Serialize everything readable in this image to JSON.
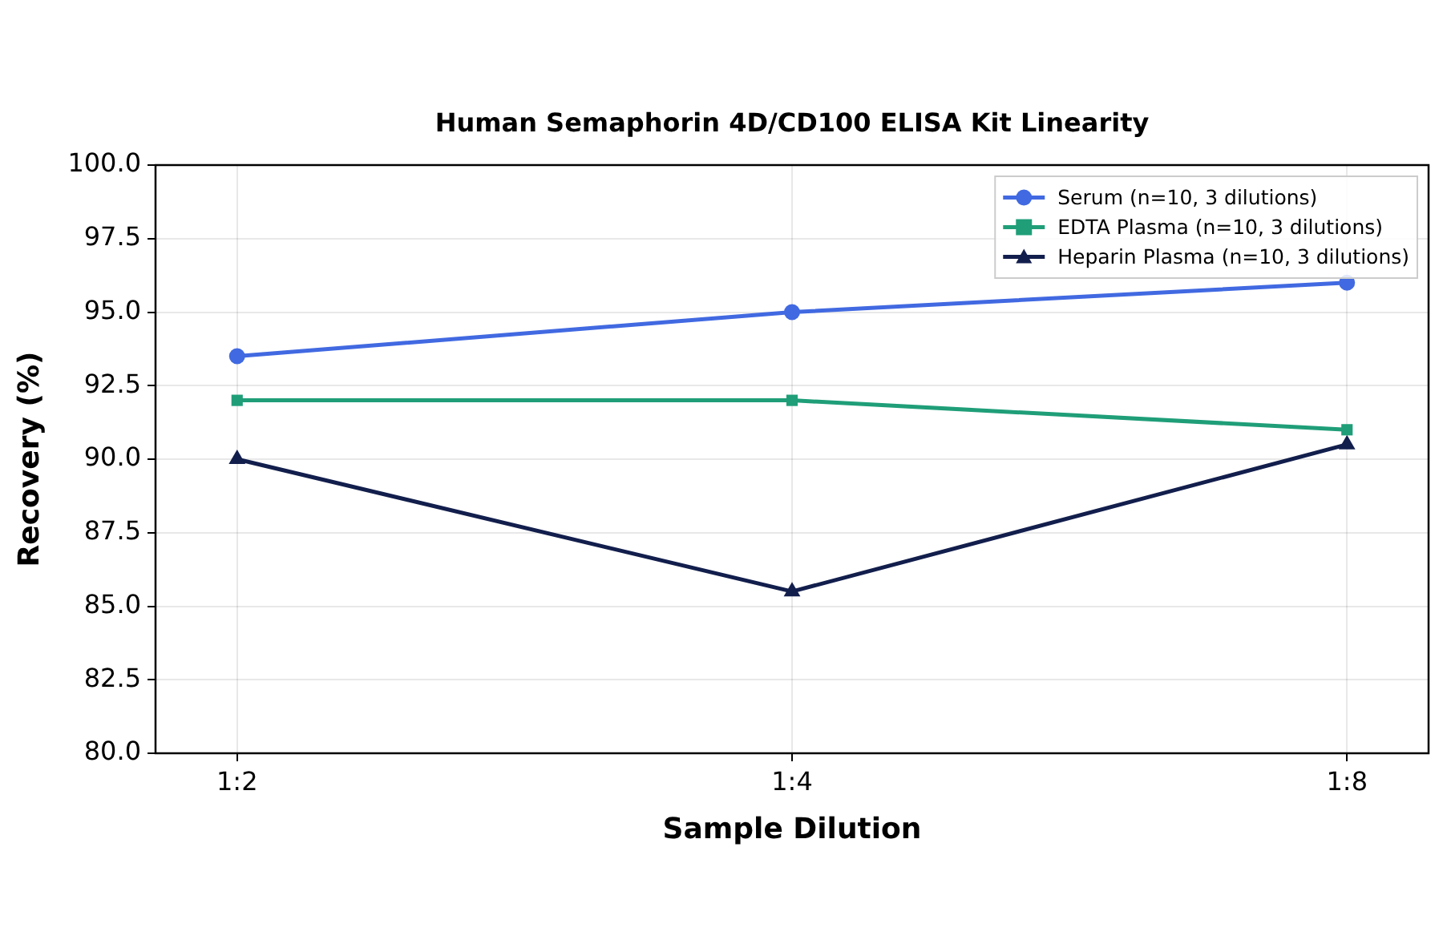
{
  "chart_data": {
    "type": "line",
    "title": "Human Semaphorin 4D/CD100 ELISA Kit Linearity",
    "xlabel": "Sample Dilution",
    "ylabel": "Recovery (%)",
    "categories": [
      "1:2",
      "1:4",
      "1:8"
    ],
    "series": [
      {
        "name": "Serum (n=10, 3 dilutions)",
        "color": "#4169e1",
        "marker": "circle",
        "values": [
          93.5,
          95.0,
          96.0
        ]
      },
      {
        "name": "EDTA Plasma (n=10, 3 dilutions)",
        "color": "#1f9e78",
        "marker": "square",
        "values": [
          92.0,
          92.0,
          91.0
        ]
      },
      {
        "name": "Heparin Plasma (n=10, 3 dilutions)",
        "color": "#121e4c",
        "marker": "triangle",
        "values": [
          90.0,
          85.5,
          90.5
        ]
      }
    ],
    "ylim": [
      80,
      100
    ],
    "yticks": [
      {
        "value": 80,
        "label": "80.0"
      },
      {
        "value": 82.5,
        "label": "82.5"
      },
      {
        "value": 85,
        "label": "85.0"
      },
      {
        "value": 87.5,
        "label": "87.5"
      },
      {
        "value": 90,
        "label": "90.0"
      },
      {
        "value": 92.5,
        "label": "92.5"
      },
      {
        "value": 95,
        "label": "95.0"
      },
      {
        "value": 97.5,
        "label": "97.5"
      },
      {
        "value": 100,
        "label": "100.0"
      }
    ],
    "grid": true,
    "legend": "top right",
    "line_style": "solid"
  }
}
